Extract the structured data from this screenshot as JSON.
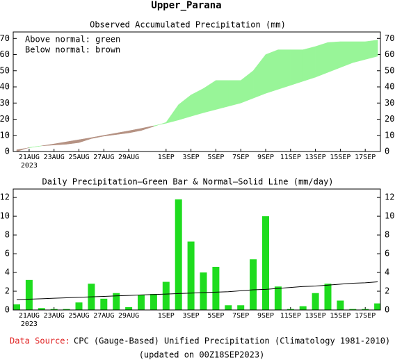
{
  "title": "Upper_Parana",
  "source_label": "Data Source:",
  "source_text": "CPC (Gauge-Based) Unified Precipitation (Climatology 1981-2010)",
  "updated": "(updated on 00Z18SEP2023)",
  "chart_data": [
    {
      "type": "difference_area",
      "title": "Observed Accumulated Precipitation (mm)",
      "annotations": [
        "Above normal: green",
        "Below normal: brown"
      ],
      "categories": [
        null,
        "21AUG",
        null,
        "23AUG",
        null,
        "25AUG",
        null,
        "27AUG",
        null,
        "29AUG",
        null,
        null,
        "1SEP",
        null,
        "3SEP",
        null,
        "5SEP",
        null,
        "7SEP",
        null,
        "9SEP",
        null,
        "11SEP",
        null,
        "13SEP",
        null,
        "15SEP",
        null,
        "17SEP",
        null
      ],
      "year_label": "2023",
      "observed": [
        0,
        2.5,
        3.5,
        4,
        4.5,
        5.5,
        8,
        9.5,
        10.5,
        11.5,
        13,
        15.5,
        18,
        29,
        35,
        39,
        44,
        44,
        44,
        50,
        60,
        63,
        63,
        63,
        65,
        67.5,
        68,
        68,
        68,
        69
      ],
      "normal": [
        1.1,
        2.3,
        3.5,
        4.7,
        6,
        7.3,
        8.6,
        10,
        11.4,
        12.8,
        14.3,
        15.9,
        17.5,
        19.5,
        21.8,
        24,
        26,
        28,
        30,
        33,
        36,
        38.5,
        41,
        43.5,
        46,
        49,
        52,
        55,
        57,
        59
      ],
      "above_color": "#98f598",
      "below_color": "#b59283",
      "ylim": [
        0,
        74
      ],
      "yticks": [
        0,
        10,
        20,
        30,
        40,
        50,
        60,
        70
      ]
    },
    {
      "type": "bar_line",
      "title": "Daily Precipitation—Green Bar & Normal—Solid Line (mm/day)",
      "categories": [
        null,
        "21AUG",
        null,
        "23AUG",
        null,
        "25AUG",
        null,
        "27AUG",
        null,
        "29AUG",
        null,
        null,
        "1SEP",
        null,
        "3SEP",
        null,
        "5SEP",
        null,
        "7SEP",
        null,
        "9SEP",
        null,
        "11SEP",
        null,
        "13SEP",
        null,
        "15SEP",
        null,
        "17SEP",
        null
      ],
      "year_label": "2023",
      "values": [
        0.6,
        3.2,
        0.2,
        0.1,
        0.1,
        0.8,
        2.8,
        1.2,
        1.8,
        0.3,
        1.6,
        1.7,
        3.0,
        11.8,
        7.3,
        4.0,
        4.6,
        0.5,
        0.5,
        5.4,
        10.0,
        2.5,
        0.1,
        0.4,
        1.8,
        2.8,
        1.0,
        0.1,
        0.1,
        0.7
      ],
      "color": "#1edc1e",
      "normal": [
        1.1,
        1.15,
        1.2,
        1.25,
        1.3,
        1.35,
        1.4,
        1.45,
        1.5,
        1.55,
        1.6,
        1.65,
        1.7,
        1.75,
        1.8,
        1.85,
        1.9,
        1.95,
        2.05,
        2.15,
        2.2,
        2.3,
        2.4,
        2.5,
        2.55,
        2.65,
        2.75,
        2.85,
        2.9,
        3.0
      ],
      "line_color": "#000000",
      "ylim": [
        0,
        12.9
      ],
      "yticks": [
        0,
        2,
        4,
        6,
        8,
        10,
        12
      ]
    }
  ]
}
